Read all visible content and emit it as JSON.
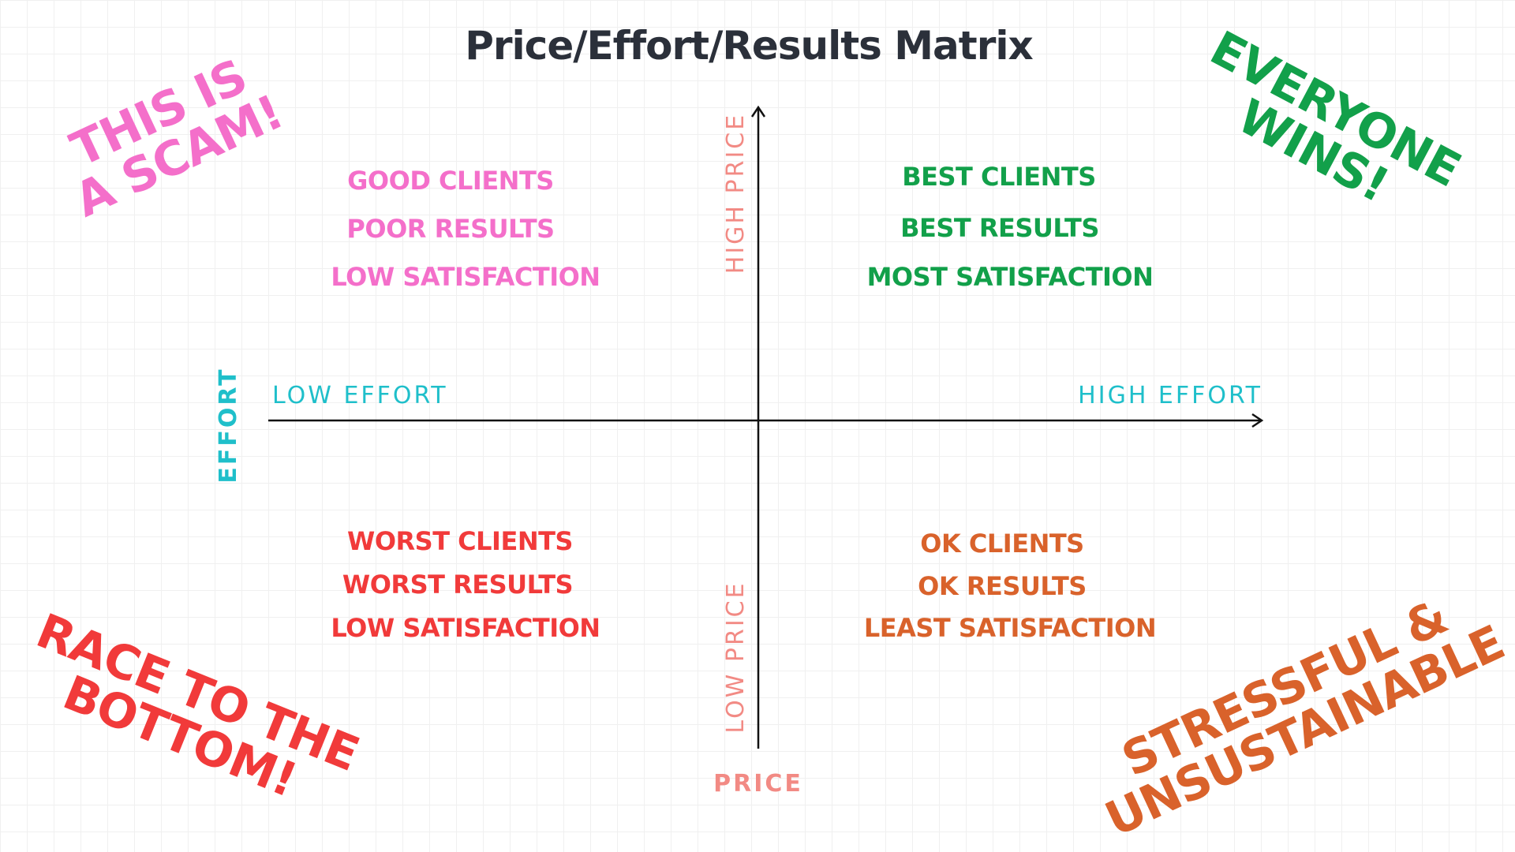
{
  "title": "Price/Effort/Results Matrix",
  "axes": {
    "y_high": "HIGH PRICE",
    "y_low": "LOW PRICE",
    "y_name": "PRICE",
    "x_low": "LOW EFFORT",
    "x_high": "HIGH EFFORT",
    "x_name": "EFFORT"
  },
  "quadrants": [
    {
      "lines": [
        "GOOD CLIENTS",
        "POOR RESULTS",
        "LOW SATISFACTION"
      ],
      "slogan": [
        "THIS IS",
        "A SCAM!"
      ]
    },
    {
      "lines": [
        "BEST CLIENTS",
        "BEST RESULTS",
        "MOST SATISFACTION"
      ],
      "slogan": [
        "EVERYONE",
        "WINS!"
      ]
    },
    {
      "lines": [
        "WORST CLIENTS",
        "WORST RESULTS",
        "LOW SATISFACTION"
      ],
      "slogan": [
        "RACE TO THE",
        "BOTTOM!"
      ]
    },
    {
      "lines": [
        "OK CLIENTS",
        "OK RESULTS",
        "LEAST SATISFACTION"
      ],
      "slogan": [
        "STRESSFUL &",
        "UNSUSTAINABLE"
      ]
    }
  ]
}
